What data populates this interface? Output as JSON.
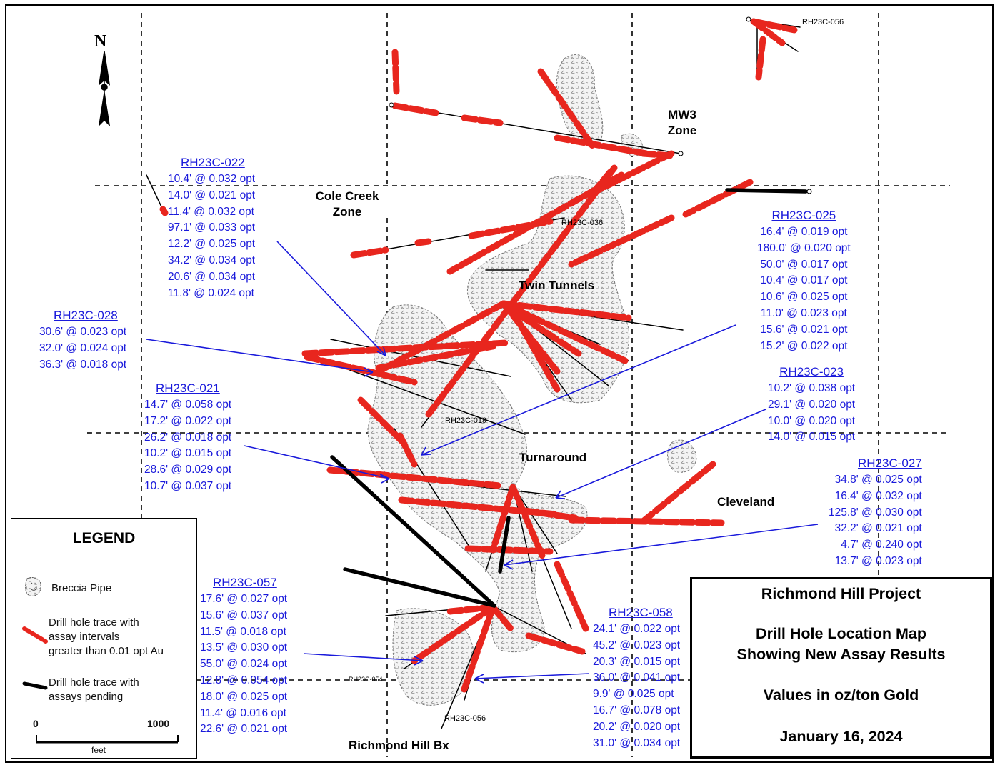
{
  "north_label": "N",
  "zones": {
    "mw3": [
      "MW3",
      "Zone"
    ],
    "cole_creek": [
      "Cole Creek",
      "Zone"
    ],
    "twin_tunnels": "Twin Tunnels",
    "turnaround": "Turnaround",
    "cleveland": "Cleveland",
    "richmond_hill_bx": "Richmond Hill Bx"
  },
  "hole_labels": {
    "h056_top": "RH23C-056",
    "h036": "RH23C-036",
    "h019": "RH23C-019",
    "h054": "RH23C-054",
    "h056_bottom": "RH23C-056"
  },
  "assay_blocks": {
    "rh23c_022": {
      "hole": "RH23C-022",
      "intervals": [
        "10.4' @ 0.032 opt",
        "14.0' @ 0.021 opt",
        "11.4' @ 0.032 opt",
        "97.1' @ 0.033 opt",
        "12.2' @ 0.025 opt",
        "34.2' @ 0.034 opt",
        "20.6' @ 0.034 opt",
        "11.8' @ 0.024 opt"
      ]
    },
    "rh23c_028": {
      "hole": "RH23C-028",
      "intervals": [
        "30.6' @ 0.023 opt",
        "32.0' @ 0.024 opt",
        "36.3' @ 0.018 opt"
      ]
    },
    "rh23c_021": {
      "hole": "RH23C-021",
      "intervals": [
        "14.7' @ 0.058 opt",
        "17.2' @ 0.022 opt",
        "26.2' @ 0.018 opt",
        "10.2' @ 0.015 opt",
        "28.6' @ 0.029 opt",
        "10.7' @ 0.037 opt"
      ]
    },
    "rh23c_057": {
      "hole": "RH23C-057",
      "intervals": [
        "17.6' @ 0.027 opt",
        "15.6' @ 0.037 opt",
        "11.5' @ 0.018 opt",
        "13.5' @ 0.030 opt",
        "55.0' @ 0.024 opt",
        "12.8' @ 0.054 opt",
        "18.0' @ 0.025 opt",
        "11.4' @ 0.016 opt",
        "22.6' @ 0.021 opt"
      ]
    },
    "rh23c_025": {
      "hole": "RH23C-025",
      "intervals": [
        "16.4' @ 0.019 opt",
        "180.0' @ 0.020 opt",
        "50.0' @ 0.017 opt",
        "10.4' @ 0.017 opt",
        "10.6' @ 0.025 opt",
        "11.0' @ 0.023 opt",
        "15.6' @ 0.021 opt",
        "15.2' @ 0.022 opt"
      ]
    },
    "rh23c_023": {
      "hole": "RH23C-023",
      "intervals": [
        "10.2' @ 0.038 opt",
        "29.1' @ 0.020 opt",
        "10.0' @ 0.020 opt",
        "14.0' @ 0.015 opt"
      ]
    },
    "rh23c_027": {
      "hole": "RH23C-027",
      "intervals": [
        "34.8' @ 0.025 opt",
        "16.4' @ 0.032 opt",
        "125.8' @ 0.030 opt",
        "32.2' @ 0.021 opt",
        "4.7' @ 0.240 opt",
        "13.7' @ 0.023 opt"
      ]
    },
    "rh23c_058": {
      "hole": "RH23C-058",
      "intervals": [
        "24.1' @ 0.022 opt",
        "45.2' @ 0.023 opt",
        "20.3' @ 0.015 opt",
        "36.0' @ 0.041 opt",
        "9.9' @ 0.025 opt",
        "16.7' @ 0.078 opt",
        "20.2' @ 0.020 opt",
        "31.0' @ 0.034 opt"
      ]
    }
  },
  "legend": {
    "title": "LEGEND",
    "breccia": "Breccia Pipe",
    "drill_assay": [
      "Drill hole trace with",
      "assay intervals",
      "greater than 0.01 opt Au"
    ],
    "drill_pending": [
      "Drill hole trace with",
      "assays pending"
    ],
    "scale_start": "0",
    "scale_end": "1000",
    "scale_unit": "feet"
  },
  "title_box": {
    "project": "Richmond Hill Project",
    "map_title_1": "Drill Hole Location Map",
    "map_title_2": "Showing New Assay Results",
    "units": "Values in oz/ton Gold",
    "date": "January 16, 2024"
  },
  "colors": {
    "assay": "#e8261e",
    "label_blue": "#1a1adb",
    "pending": "#000000",
    "breccia": "#9a9a9a"
  }
}
